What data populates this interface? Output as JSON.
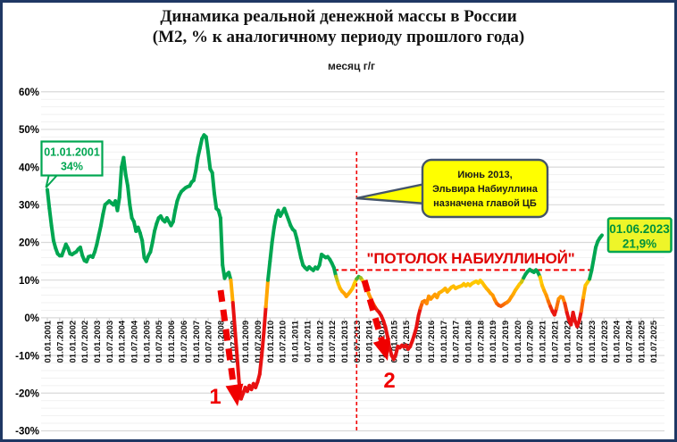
{
  "window": {
    "background": "#ffffff",
    "border_color": "#1f3864"
  },
  "title": {
    "line1": "Динамика реальной денежной массы в России",
    "line2": "(М2, % к аналогичному периоду прошлого года)"
  },
  "legend": {
    "label": "месяц г/г",
    "colors": [
      "#00a651",
      "#d21c1c"
    ]
  },
  "chart_data": {
    "type": "line",
    "series_name": "месяц г/г",
    "x_start": "01.2001",
    "x_step_months": 1,
    "values": [
      34,
      29,
      24.5,
      20.5,
      18.5,
      17,
      16.5,
      16.5,
      18,
      19.5,
      18.5,
      17,
      16.8,
      17.2,
      17.5,
      18.2,
      18.7,
      16.5,
      15.2,
      14.9,
      16.2,
      16.4,
      16.1,
      17.5,
      19.5,
      22,
      24.5,
      27.5,
      30,
      30.5,
      31,
      30.5,
      30,
      31,
      28.5,
      32,
      40,
      42.5,
      38,
      35,
      30,
      26.5,
      25.5,
      23,
      24,
      22.5,
      20.5,
      16,
      15,
      16.5,
      17.5,
      20,
      23,
      25,
      26.5,
      27,
      26,
      25.5,
      26.5,
      25.5,
      24.5,
      25.5,
      28.5,
      31,
      32.5,
      33.5,
      34,
      34.5,
      34.8,
      35,
      36,
      36.5,
      39,
      42.5,
      45,
      47.5,
      48.5,
      48,
      44,
      39.5,
      38.5,
      33,
      29,
      28.5,
      26.5,
      14,
      10.5,
      11.5,
      12,
      10,
      4,
      -3,
      -10,
      -17,
      -21.5,
      -20,
      -18.5,
      -19.5,
      -18,
      -19,
      -17.5,
      -18.5,
      -17,
      -15,
      -10,
      -4,
      3,
      10,
      15,
      20,
      24,
      27,
      28.5,
      27,
      28,
      29,
      27.5,
      26,
      24.5,
      23.5,
      23,
      21,
      18.5,
      16,
      14,
      13.3,
      12.8,
      13.5,
      13,
      12.6,
      13.4,
      13,
      14,
      16.8,
      16.4,
      16,
      16.2,
      15.5,
      14.5,
      13.3,
      11,
      9.2,
      7.8,
      7,
      6.5,
      5.7,
      6.3,
      7,
      7.8,
      9.2,
      10.3,
      10.9,
      10.6,
      9.8,
      9,
      7.8,
      6.2,
      5,
      3.8,
      2.8,
      2,
      1.4,
      0.5,
      -0.8,
      -2.5,
      -5,
      -8,
      -10,
      -11,
      -9.8,
      -7.6,
      -7.9,
      -7.3,
      -7.7,
      -7.3,
      -8.3,
      -7.6,
      -6.2,
      -4.5,
      -2.6,
      0.5,
      2.6,
      4.2,
      4.5,
      3.8,
      5.7,
      5,
      5.6,
      6.2,
      5.4,
      6.6,
      6.9,
      7.3,
      7.8,
      6.9,
      7.5,
      8.1,
      8.4,
      7.8,
      8.1,
      8.3,
      8.5,
      9,
      8.5,
      9,
      8.6,
      9.1,
      9.4,
      9.7,
      9.2,
      9.9,
      9.3,
      8.5,
      7.8,
      7.2,
      6.5,
      6,
      4.8,
      3.8,
      3.3,
      3.1,
      3.4,
      3.8,
      4.1,
      4.6,
      5.5,
      6.3,
      7.3,
      8.1,
      8.9,
      9.5,
      10.6,
      11.6,
      12.3,
      12.8,
      12.4,
      12.1,
      12.7,
      12,
      10.8,
      8.6,
      7.2,
      6,
      4.4,
      3,
      1.7,
      0.8,
      2.6,
      5,
      5.6,
      5.4,
      3.8,
      1.4,
      -0.6,
      -1.8,
      1.4,
      -0.9,
      -2.3,
      -0.8,
      1.8,
      5.4,
      8.6,
      9.4,
      10.3,
      12.6,
      15.6,
      18.7,
      20.3,
      21.2,
      21.9
    ],
    "x_tick_labels": [
      "01.01.2001",
      "01.07.2001",
      "01.01.2002",
      "01.07.2002",
      "01.01.2003",
      "01.07.2003",
      "01.01.2004",
      "01.07.2004",
      "01.01.2005",
      "01.07.2005",
      "01.01.2006",
      "01.07.2006",
      "01.01.2007",
      "01.07.2007",
      "01.01.2008",
      "01.07.2008",
      "01.01.2009",
      "01.07.2009",
      "01.01.2010",
      "01.07.2010",
      "01.01.2011",
      "01.07.2011",
      "01.01.2012",
      "01.07.2012",
      "01.01.2013",
      "01.07.2013",
      "01.01.2014",
      "01.07.2014",
      "01.01.2015",
      "01.07.2015",
      "01.01.2016",
      "01.07.2016",
      "01.01.2017",
      "01.07.2017",
      "01.01.2018",
      "01.07.2018",
      "01.01.2019",
      "01.07.2019",
      "01.01.2020",
      "01.07.2020",
      "01.01.2021",
      "01.07.2021",
      "01.01.2022",
      "01.07.2022",
      "01.01.2023",
      "01.07.2023",
      "01.01.2024",
      "01.07.2024",
      "01.01.2025",
      "01.07.2025"
    ],
    "y_ticks": [
      60,
      50,
      40,
      30,
      20,
      10,
      0,
      -10,
      -20,
      -30
    ],
    "y_tick_suffix": "%",
    "ylim": [
      -30,
      62
    ],
    "minor_grid_step": 2,
    "grid": true,
    "legend_position": "top",
    "color_rule": [
      [
        1.5,
        "#e81111"
      ],
      [
        4.5,
        "#ff8a00"
      ],
      [
        8,
        "#ffbb00"
      ],
      [
        9.8,
        "#ffcc00"
      ],
      [
        11,
        "#00a651"
      ]
    ],
    "annotations": {
      "start_callout": {
        "line1": "01.01.2001",
        "line2": "34%"
      },
      "end_callout": {
        "line1": "01.06.2023",
        "line2": "21,9%"
      },
      "ceiling_label": "\"ПОТОЛОК НАБИУЛЛИНОЙ\"",
      "ceiling_value": 12.7,
      "vline_date": "01.07.2013",
      "governor_callout": {
        "line1": "Июнь 2013,",
        "line2": "Эльвира Набиуллина",
        "line3": "назначена главой ЦБ"
      },
      "arrow1_label": "1",
      "arrow2_label": "2"
    }
  }
}
